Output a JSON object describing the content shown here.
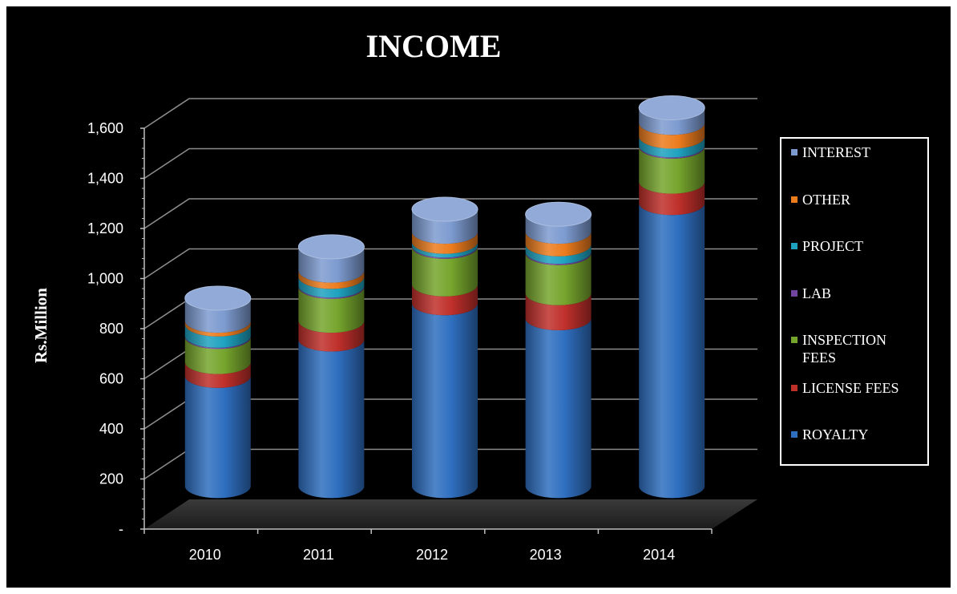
{
  "chart_data": {
    "type": "bar",
    "stacked": true,
    "style": "3d-cylinder",
    "title": "INCOME",
    "ylabel": "Rs.Million",
    "xlabel": "",
    "categories": [
      "2010",
      "2011",
      "2012",
      "2013",
      "2014"
    ],
    "ylim": [
      0,
      1600
    ],
    "yticks": [
      0,
      200,
      400,
      600,
      800,
      1000,
      1200,
      1400,
      1600
    ],
    "ytick_labels": [
      "-",
      "200",
      "400",
      "600",
      "800",
      "1,000",
      "1,200",
      "1,400",
      "1,600"
    ],
    "grid": true,
    "legend_position": "right",
    "series": [
      {
        "name": "ROYALTY",
        "color": "#2f6fc0",
        "values": [
          440,
          585,
          730,
          670,
          1130
        ]
      },
      {
        "name": "LICENSE FEES",
        "color": "#c0302b",
        "values": [
          55,
          75,
          75,
          100,
          85
        ]
      },
      {
        "name": "INSPECTION FEES",
        "color": "#76a52d",
        "values": [
          100,
          135,
          150,
          160,
          140
        ]
      },
      {
        "name": "LAB",
        "color": "#7245a0",
        "values": [
          5,
          5,
          5,
          5,
          5
        ]
      },
      {
        "name": "PROJECT",
        "color": "#1fa2c0",
        "values": [
          45,
          35,
          15,
          30,
          35
        ]
      },
      {
        "name": "OTHER",
        "color": "#ec7c1e",
        "values": [
          15,
          25,
          40,
          50,
          55
        ]
      },
      {
        "name": "INTEREST",
        "color": "#7d9bd0",
        "values": [
          90,
          95,
          90,
          70,
          60
        ]
      }
    ]
  }
}
